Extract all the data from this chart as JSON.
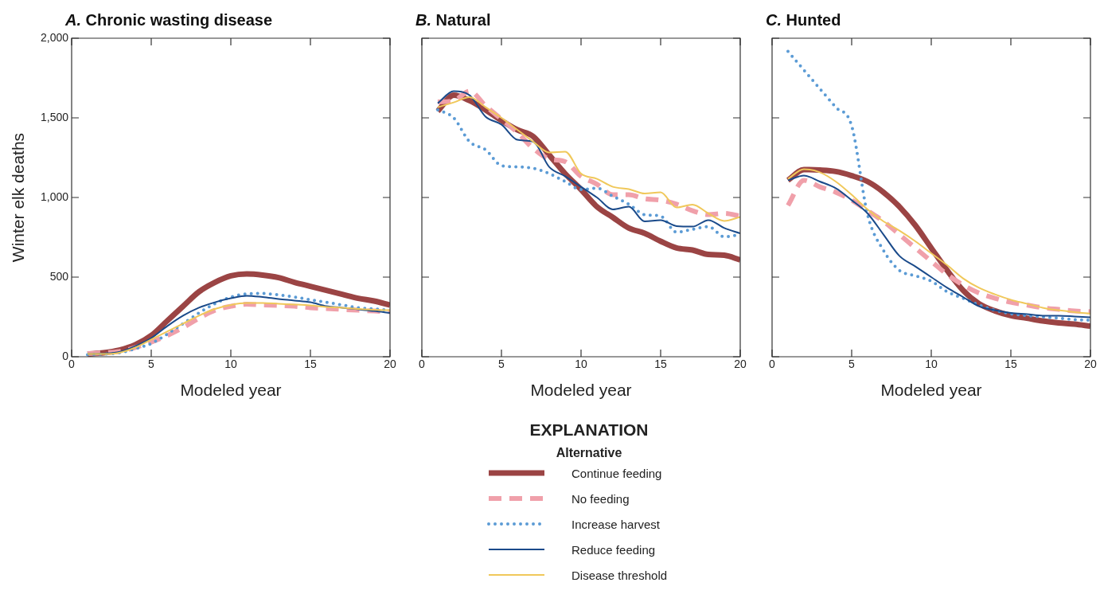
{
  "chart_data": [
    {
      "type": "line",
      "title": "A. Chronic wasting disease",
      "xlabel": "Modeled year",
      "ylabel": "Winter elk deaths",
      "legend": "bottom",
      "legend_title": "Alternative",
      "annotations": [
        "EXPLANATION"
      ],
      "x": [
        1,
        2,
        3,
        4,
        5,
        6,
        7,
        8,
        9,
        10,
        11,
        12,
        13,
        14,
        15,
        16,
        17,
        18,
        19,
        20
      ],
      "xlim": [
        0,
        20
      ],
      "xticks": [
        0,
        5,
        10,
        15,
        20
      ],
      "ylim": [
        0,
        2000
      ],
      "yticks": [
        {
          "value": 0,
          "label": "0"
        },
        {
          "value": 500,
          "label": "500"
        },
        {
          "value": 1000,
          "label": "1,000"
        },
        {
          "value": 1500,
          "label": "1,500"
        },
        {
          "value": 2000,
          "label": "2,000"
        }
      ],
      "grid": false,
      "marker": "none",
      "series": [
        {
          "name": "Continue feeding",
          "color": "#9b4444",
          "line_style": "solid",
          "values": [
            17,
            25,
            42,
            75,
            133,
            225,
            317,
            408,
            467,
            508,
            520,
            513,
            497,
            467,
            442,
            417,
            392,
            367,
            350,
            325
          ]
        },
        {
          "name": "No feeding",
          "color": "#f0a0aa",
          "line_style": "dashed",
          "values": [
            20,
            25,
            33,
            58,
            92,
            133,
            183,
            242,
            292,
            317,
            330,
            325,
            322,
            317,
            308,
            303,
            297,
            292,
            287,
            283
          ]
        },
        {
          "name": "Increase harvest",
          "color": "#5b9bd5",
          "line_style": "dotted",
          "values": [
            13,
            17,
            25,
            50,
            83,
            142,
            208,
            275,
            333,
            375,
            395,
            397,
            388,
            375,
            358,
            342,
            325,
            308,
            300,
            292
          ]
        },
        {
          "name": "Reduce feeding",
          "color": "#1a4a8a",
          "line_style": "solid",
          "values": [
            17,
            20,
            30,
            67,
            117,
            192,
            258,
            308,
            342,
            367,
            383,
            375,
            363,
            353,
            342,
            317,
            308,
            297,
            287,
            275
          ]
        },
        {
          "name": "Disease threshold",
          "color": "#f0c85a",
          "line_style": "solid",
          "values": [
            17,
            17,
            25,
            58,
            108,
            158,
            208,
            258,
            300,
            325,
            337,
            337,
            333,
            328,
            322,
            313,
            308,
            300,
            295,
            292
          ]
        }
      ]
    },
    {
      "type": "line",
      "title": "B. Natural",
      "xlabel": "Modeled year",
      "tick_labels": "x",
      "x": [
        1,
        2,
        3,
        4,
        5,
        6,
        7,
        8,
        9,
        10,
        11,
        12,
        13,
        14,
        15,
        16,
        17,
        18,
        19,
        20
      ],
      "xlim": [
        0,
        20
      ],
      "xticks": [
        0,
        5,
        10,
        15,
        20
      ],
      "ylim": [
        0,
        2000
      ],
      "yticks": [
        0,
        500,
        1000,
        1500,
        2000
      ],
      "grid": false,
      "marker": "none",
      "series": [
        {
          "color": "#9b4444",
          "line_style": "solid",
          "values": [
            1542,
            1642,
            1608,
            1550,
            1483,
            1425,
            1383,
            1267,
            1150,
            1050,
            942,
            875,
            808,
            775,
            725,
            683,
            670,
            642,
            637,
            608
          ]
        },
        {
          "color": "#f0a0aa",
          "line_style": "dashed",
          "values": [
            1600,
            1608,
            1667,
            1575,
            1492,
            1408,
            1308,
            1242,
            1225,
            1133,
            1083,
            1017,
            1017,
            992,
            983,
            958,
            917,
            892,
            900,
            883
          ]
        },
        {
          "color": "#5b9bd5",
          "line_style": "dotted",
          "values": [
            1550,
            1500,
            1350,
            1300,
            1200,
            1192,
            1183,
            1150,
            1100,
            1050,
            1058,
            1008,
            958,
            892,
            883,
            783,
            800,
            817,
            753,
            767
          ]
        },
        {
          "color": "#1a4a8a",
          "line_style": "solid",
          "values": [
            1592,
            1667,
            1642,
            1508,
            1458,
            1362,
            1350,
            1192,
            1133,
            1067,
            1000,
            925,
            942,
            850,
            858,
            820,
            817,
            858,
            808,
            775
          ]
        },
        {
          "color": "#f0c85a",
          "line_style": "solid",
          "values": [
            1567,
            1597,
            1630,
            1567,
            1500,
            1425,
            1350,
            1283,
            1288,
            1150,
            1117,
            1067,
            1053,
            1025,
            1033,
            937,
            955,
            900,
            853,
            878
          ]
        }
      ]
    },
    {
      "type": "line",
      "title": "C. Hunted",
      "xlabel": "Modeled year",
      "tick_labels": "x",
      "x": [
        1,
        2,
        3,
        4,
        5,
        6,
        7,
        8,
        9,
        10,
        11,
        12,
        13,
        14,
        15,
        16,
        17,
        18,
        19,
        20
      ],
      "xlim": [
        0,
        20
      ],
      "xticks": [
        0,
        5,
        10,
        15,
        20
      ],
      "ylim": [
        0,
        2000
      ],
      "yticks": [
        0,
        500,
        1000,
        1500,
        2000
      ],
      "grid": false,
      "marker": "none",
      "series": [
        {
          "color": "#9b4444",
          "line_style": "solid",
          "values": [
            1108,
            1175,
            1172,
            1163,
            1137,
            1100,
            1033,
            942,
            825,
            683,
            542,
            417,
            333,
            288,
            258,
            242,
            225,
            213,
            205,
            192
          ]
        },
        {
          "color": "#f0a0aa",
          "line_style": "dashed",
          "values": [
            950,
            1108,
            1067,
            1033,
            983,
            917,
            850,
            767,
            683,
            600,
            517,
            450,
            400,
            367,
            342,
            325,
            308,
            297,
            287,
            283
          ]
        },
        {
          "color": "#5b9bd5",
          "line_style": "dotted",
          "values": [
            1917,
            1800,
            1683,
            1567,
            1450,
            892,
            667,
            542,
            508,
            475,
            408,
            367,
            325,
            292,
            270,
            258,
            250,
            242,
            233,
            230
          ]
        },
        {
          "color": "#1a4a8a",
          "line_style": "solid",
          "values": [
            1108,
            1137,
            1100,
            1058,
            983,
            900,
            767,
            633,
            567,
            500,
            433,
            375,
            317,
            292,
            275,
            267,
            258,
            258,
            253,
            247
          ]
        },
        {
          "color": "#f0c85a",
          "line_style": "solid",
          "values": [
            1117,
            1178,
            1158,
            1100,
            1017,
            925,
            850,
            792,
            725,
            650,
            575,
            492,
            433,
            392,
            358,
            333,
            308,
            292,
            280,
            270
          ]
        }
      ]
    }
  ]
}
